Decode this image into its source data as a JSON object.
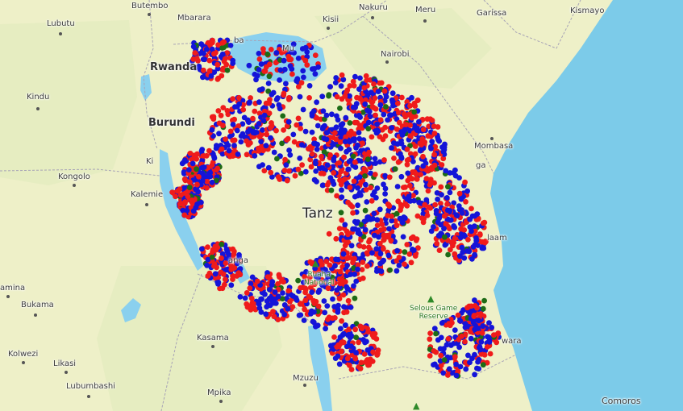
{
  "map": {
    "colors": {
      "land": "#eef0c8",
      "land_alt": "#e3ebbd",
      "water": "#7ccbe9",
      "lake": "#8ad0ee",
      "border": "#a7a3b6",
      "red_points": "#ef1b1b",
      "blue_points": "#1414d8",
      "green_points": "#1d6b16"
    },
    "labels": {
      "butembo": "Butembo",
      "mbarara": "Mbarara",
      "kisii": "Kisii",
      "nakuru": "Nakuru",
      "meru": "Meru",
      "garissa": "Garissa",
      "kismayo": "Kismayo",
      "lubutu": "Lubutu",
      "rwanda": "Rwanda",
      "nairobi": "Nairobi",
      "kindu": "Kindu",
      "burundi": "Burundi",
      "mombasa": "Mombasa",
      "kongolo": "Kongolo",
      "kalemie": "Kalemie",
      "tanzania_partial": "Tanz",
      "ruaha_line1": "Ruaha",
      "ruaha_line2": "National",
      "selous_line1": "Selous Game",
      "selous_line2": "Reserve",
      "kamina_partial": "amina",
      "bukama": "Bukama",
      "kasama": "Kasama",
      "kolwezi": "Kolwezi",
      "likasi": "Likasi",
      "lubumbashi": "Lubumbashi",
      "mzuzu": "Mzuzu",
      "mpika": "Mpika",
      "comoros": "Comoros",
      "frag_ba": "ba",
      "frag_mu": "Mu",
      "frag_ga": "ga",
      "frag_laam": "laam",
      "frag_anga": "anga",
      "frag_wara": "wara",
      "frag_ki": "Ki"
    }
  }
}
